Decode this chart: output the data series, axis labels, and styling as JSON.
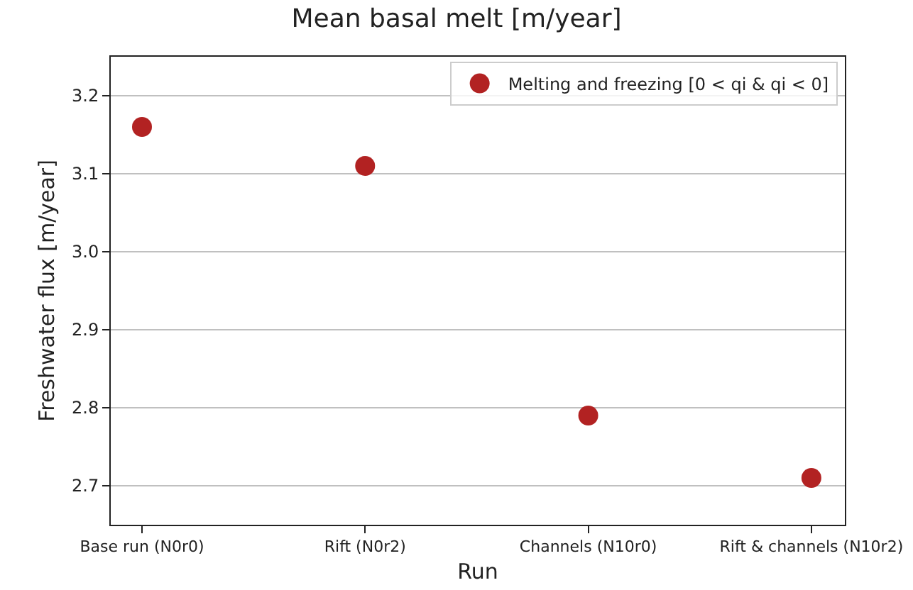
{
  "chart_data": {
    "type": "scatter",
    "title": "Mean basal melt [m/year]",
    "xlabel": "Run",
    "ylabel": "Freshwater flux [m/year]",
    "categories": [
      "Base run (N0r0)",
      "Rift (N0r2)",
      "Channels (N10r0)",
      "Rift & channels (N10r2)"
    ],
    "series": [
      {
        "name": "Melting and freezing [0 < qi & qi < 0]",
        "color": "#b22222",
        "values": [
          3.16,
          3.11,
          2.79,
          2.71
        ]
      }
    ],
    "ylim": [
      2.65,
      3.25
    ],
    "yticks": [
      2.7,
      2.8,
      2.9,
      {
        "value": 3,
        "label": "3.0"
      },
      3.1,
      3.2
    ],
    "grid": "y",
    "legend": "top right",
    "marker": "circle"
  }
}
